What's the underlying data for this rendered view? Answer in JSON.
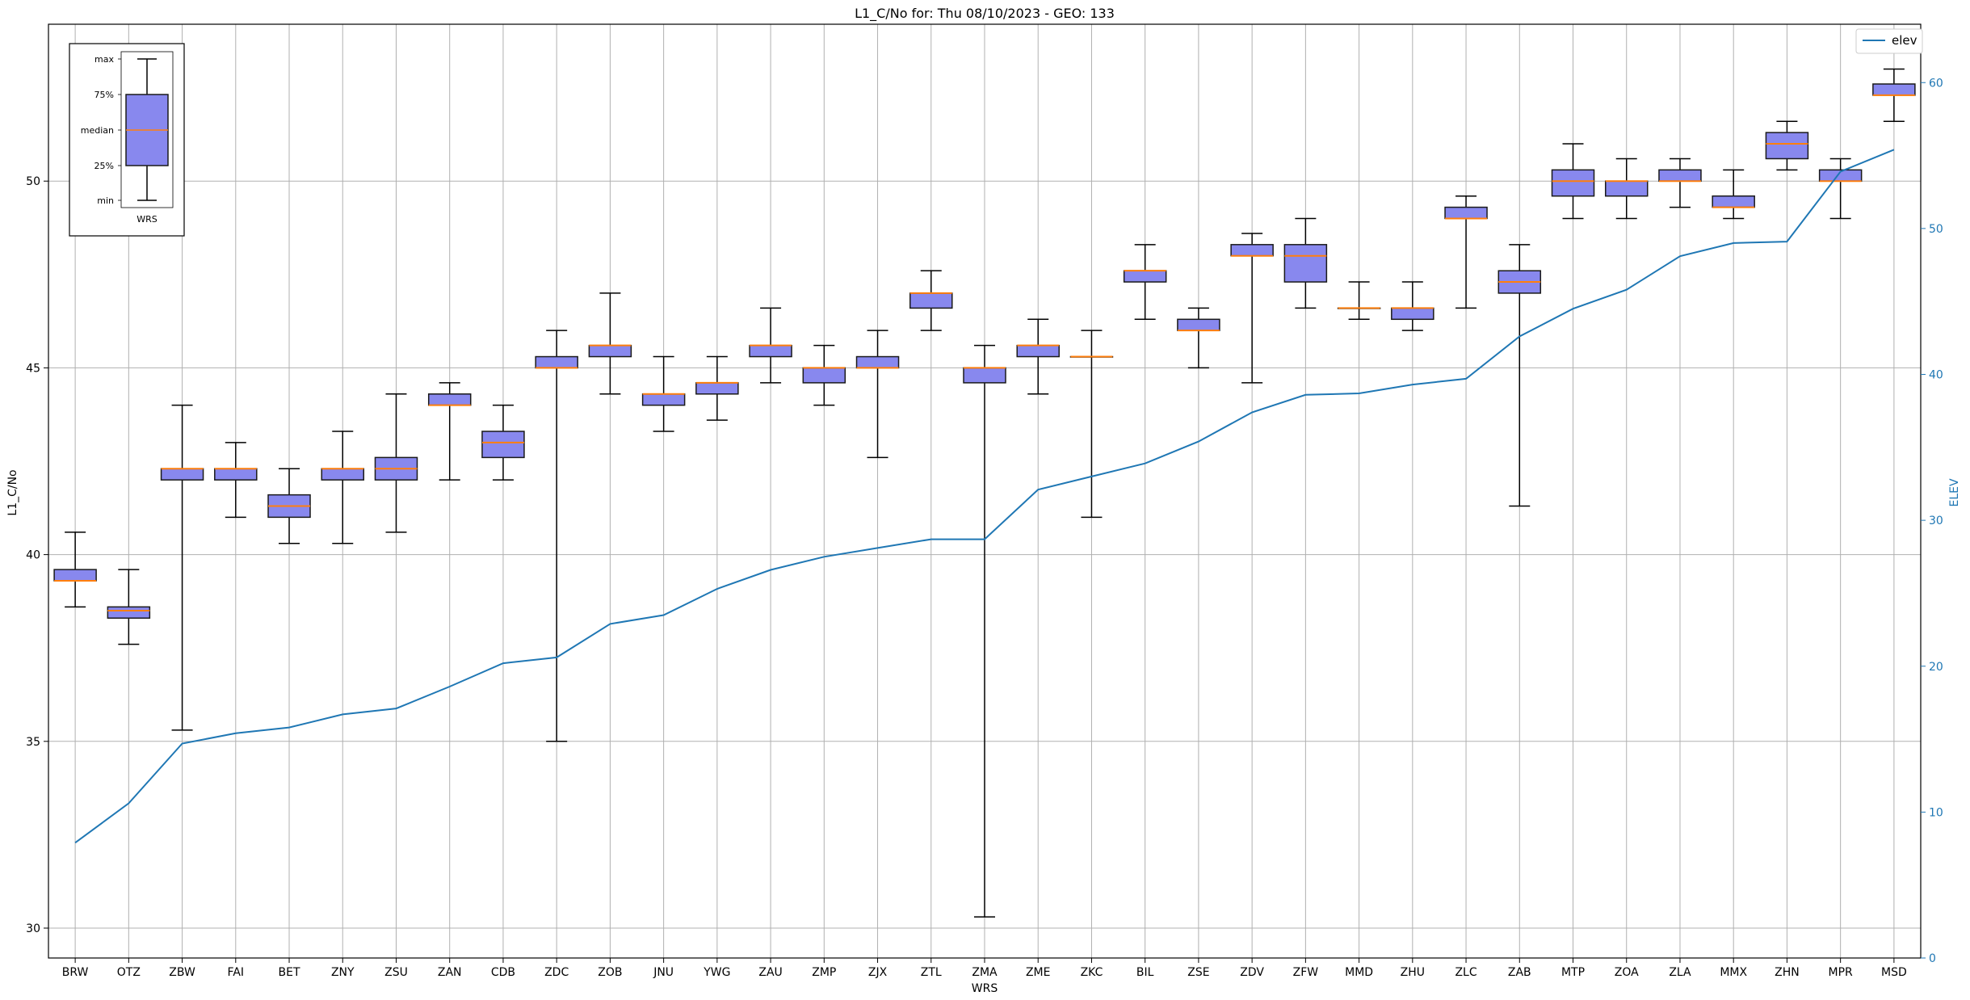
{
  "chart_data": {
    "type": "box",
    "title": "L1_C/No for: Thu 08/10/2023 - GEO: 133",
    "xlabel": "WRS",
    "ylabel": "L1_C/No",
    "y2label": "ELEV",
    "ylim": [
      29.2,
      54.2
    ],
    "y2lim": [
      0,
      64
    ],
    "yticks": [
      30,
      35,
      40,
      45,
      50
    ],
    "y2ticks": [
      0,
      10,
      20,
      30,
      40,
      50,
      60
    ],
    "grid": true,
    "legend": {
      "position": "top-right",
      "entries": [
        "elev"
      ]
    },
    "colors": {
      "box_fill": "#8888ee",
      "median": "#ff7f0e",
      "line": "#1f77b4",
      "box_edge": "#1a1a1a"
    },
    "categories": [
      "BRW",
      "OTZ",
      "ZBW",
      "FAI",
      "BET",
      "ZNY",
      "ZSU",
      "ZAN",
      "CDB",
      "ZDC",
      "ZOB",
      "JNU",
      "YWG",
      "ZAU",
      "ZMP",
      "ZJX",
      "ZTL",
      "ZMA",
      "ZME",
      "ZKC",
      "BIL",
      "ZSE",
      "ZDV",
      "ZFW",
      "MMD",
      "ZHU",
      "ZLC",
      "ZAB",
      "MTP",
      "ZOA",
      "ZLA",
      "MMX",
      "ZHN",
      "MPR",
      "MSD"
    ],
    "boxes": [
      {
        "min": 38.6,
        "q1": 39.3,
        "median": 39.3,
        "q3": 39.6,
        "max": 40.6
      },
      {
        "min": 37.6,
        "q1": 38.3,
        "median": 38.5,
        "q3": 38.6,
        "max": 39.6
      },
      {
        "min": 35.3,
        "q1": 42.0,
        "median": 42.3,
        "q3": 42.3,
        "max": 44.0
      },
      {
        "min": 41.0,
        "q1": 42.0,
        "median": 42.3,
        "q3": 42.3,
        "max": 43.0
      },
      {
        "min": 40.3,
        "q1": 41.0,
        "median": 41.3,
        "q3": 41.6,
        "max": 42.3
      },
      {
        "min": 40.3,
        "q1": 42.0,
        "median": 42.3,
        "q3": 42.3,
        "max": 43.3
      },
      {
        "min": 40.6,
        "q1": 42.0,
        "median": 42.3,
        "q3": 42.6,
        "max": 44.3
      },
      {
        "min": 42.0,
        "q1": 44.0,
        "median": 44.0,
        "q3": 44.3,
        "max": 44.6
      },
      {
        "min": 42.0,
        "q1": 42.6,
        "median": 43.0,
        "q3": 43.3,
        "max": 44.0
      },
      {
        "min": 35.0,
        "q1": 45.0,
        "median": 45.0,
        "q3": 45.3,
        "max": 46.0
      },
      {
        "min": 44.3,
        "q1": 45.3,
        "median": 45.6,
        "q3": 45.6,
        "max": 47.0
      },
      {
        "min": 43.3,
        "q1": 44.0,
        "median": 44.3,
        "q3": 44.3,
        "max": 45.3
      },
      {
        "min": 43.6,
        "q1": 44.3,
        "median": 44.6,
        "q3": 44.6,
        "max": 45.3
      },
      {
        "min": 44.6,
        "q1": 45.3,
        "median": 45.6,
        "q3": 45.6,
        "max": 46.6
      },
      {
        "min": 44.0,
        "q1": 44.6,
        "median": 45.0,
        "q3": 45.0,
        "max": 45.6
      },
      {
        "min": 42.6,
        "q1": 45.0,
        "median": 45.0,
        "q3": 45.3,
        "max": 46.0
      },
      {
        "min": 46.0,
        "q1": 46.6,
        "median": 47.0,
        "q3": 47.0,
        "max": 47.6
      },
      {
        "min": 30.3,
        "q1": 44.6,
        "median": 45.0,
        "q3": 45.0,
        "max": 45.6
      },
      {
        "min": 44.3,
        "q1": 45.3,
        "median": 45.6,
        "q3": 45.6,
        "max": 46.3
      },
      {
        "min": 41.0,
        "q1": 45.3,
        "median": 45.3,
        "q3": 45.3,
        "max": 46.0
      },
      {
        "min": 46.3,
        "q1": 47.3,
        "median": 47.6,
        "q3": 47.6,
        "max": 48.3
      },
      {
        "min": 45.0,
        "q1": 46.0,
        "median": 46.0,
        "q3": 46.3,
        "max": 46.6
      },
      {
        "min": 44.6,
        "q1": 48.0,
        "median": 48.0,
        "q3": 48.3,
        "max": 48.6
      },
      {
        "min": 46.6,
        "q1": 47.3,
        "median": 48.0,
        "q3": 48.3,
        "max": 49.0
      },
      {
        "min": 46.3,
        "q1": 46.6,
        "median": 46.6,
        "q3": 46.6,
        "max": 47.3
      },
      {
        "min": 46.0,
        "q1": 46.3,
        "median": 46.6,
        "q3": 46.6,
        "max": 47.3
      },
      {
        "min": 46.6,
        "q1": 49.0,
        "median": 49.0,
        "q3": 49.3,
        "max": 49.6
      },
      {
        "min": 41.3,
        "q1": 47.0,
        "median": 47.3,
        "q3": 47.6,
        "max": 48.3
      },
      {
        "min": 49.0,
        "q1": 49.6,
        "median": 50.0,
        "q3": 50.3,
        "max": 51.0
      },
      {
        "min": 49.0,
        "q1": 49.6,
        "median": 50.0,
        "q3": 50.0,
        "max": 50.6
      },
      {
        "min": 49.3,
        "q1": 50.0,
        "median": 50.0,
        "q3": 50.3,
        "max": 50.6
      },
      {
        "min": 49.0,
        "q1": 49.3,
        "median": 49.3,
        "q3": 49.6,
        "max": 50.3
      },
      {
        "min": 50.3,
        "q1": 50.6,
        "median": 51.0,
        "q3": 51.3,
        "max": 51.6
      },
      {
        "min": 49.0,
        "q1": 50.0,
        "median": 50.0,
        "q3": 50.3,
        "max": 50.6
      },
      {
        "min": 51.6,
        "q1": 52.3,
        "median": 52.3,
        "q3": 52.6,
        "max": 53.0
      }
    ],
    "series": [
      {
        "name": "elev",
        "axis": "right",
        "values": [
          7.9,
          10.6,
          14.7,
          15.4,
          15.8,
          16.7,
          17.1,
          18.6,
          20.2,
          20.6,
          22.9,
          23.5,
          25.3,
          26.6,
          27.5,
          28.1,
          28.7,
          28.7,
          32.1,
          33.0,
          33.9,
          35.4,
          37.4,
          38.6,
          38.7,
          39.3,
          39.7,
          42.6,
          44.5,
          45.8,
          48.1,
          49.0,
          49.1,
          53.9,
          55.4
        ]
      }
    ],
    "inset_legend": {
      "labels": [
        "max",
        "75%",
        "median",
        "25%",
        "min"
      ],
      "xlabel": "WRS"
    }
  }
}
